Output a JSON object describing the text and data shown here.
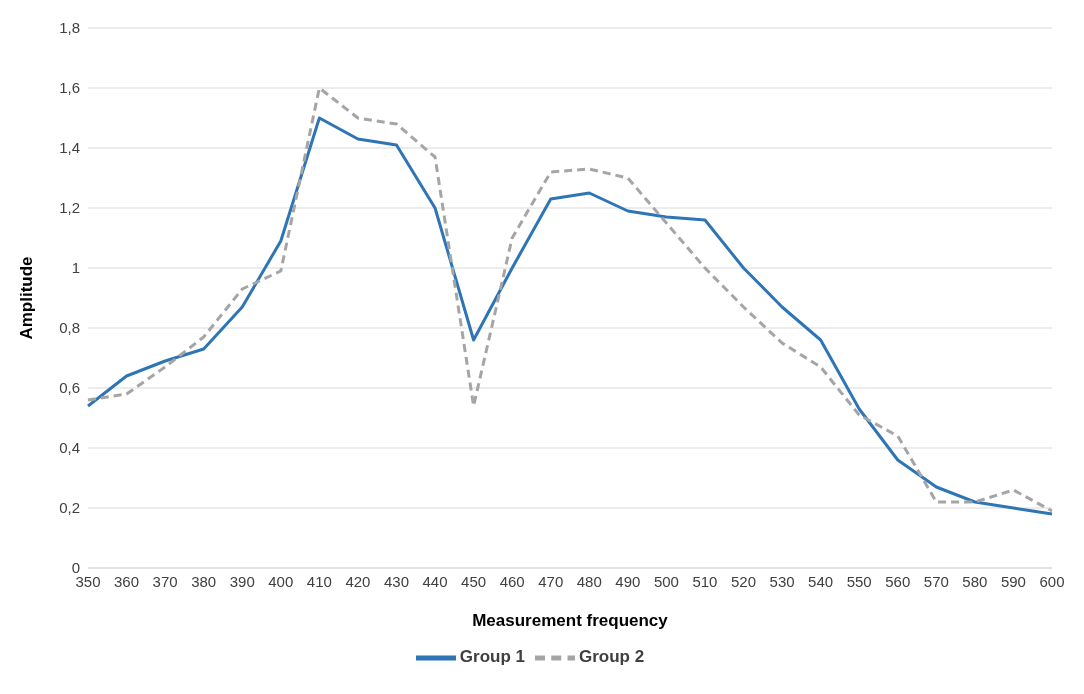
{
  "chart_data": {
    "type": "line",
    "xlabel": "Measurement frequency",
    "ylabel": "Amplitude",
    "categories": [
      "350",
      "360",
      "370",
      "380",
      "390",
      "400",
      "410",
      "420",
      "430",
      "440",
      "450",
      "460",
      "470",
      "480",
      "490",
      "500",
      "510",
      "520",
      "530",
      "540",
      "550",
      "560",
      "570",
      "580",
      "590",
      "600"
    ],
    "series": [
      {
        "name": "Group 1",
        "color": "#2e75b6",
        "line_style": "solid",
        "values": [
          0.54,
          0.64,
          0.69,
          0.73,
          0.87,
          1.09,
          1.5,
          1.43,
          1.41,
          1.2,
          0.76,
          1.0,
          1.23,
          1.25,
          1.19,
          1.17,
          1.16,
          1.0,
          0.87,
          0.76,
          0.53,
          0.36,
          0.27,
          0.22,
          0.2,
          0.18
        ]
      },
      {
        "name": "Group 2",
        "color": "#a5a5a5",
        "line_style": "dashed",
        "values": [
          0.56,
          0.58,
          0.67,
          0.77,
          0.93,
          0.99,
          1.6,
          1.5,
          1.48,
          1.37,
          0.54,
          1.1,
          1.32,
          1.33,
          1.3,
          1.15,
          1.0,
          0.87,
          0.75,
          0.67,
          0.51,
          0.44,
          0.22,
          0.22,
          0.26,
          0.19
        ]
      }
    ],
    "ylim": [
      0,
      1.8
    ],
    "yticks": [
      0,
      {
        "value": 0.2,
        "label": "0,2"
      },
      {
        "value": 0.4,
        "label": "0,4"
      },
      {
        "value": 0.6,
        "label": "0,6"
      },
      {
        "value": 0.8,
        "label": "0,8"
      },
      1,
      {
        "value": 1.2,
        "label": "1,2"
      },
      {
        "value": 1.4,
        "label": "1,4"
      },
      {
        "value": 1.6,
        "label": "1,6"
      },
      {
        "value": 1.8,
        "label": "1,8"
      }
    ],
    "grid": "y",
    "legend": "bottom",
    "marker": "none"
  }
}
